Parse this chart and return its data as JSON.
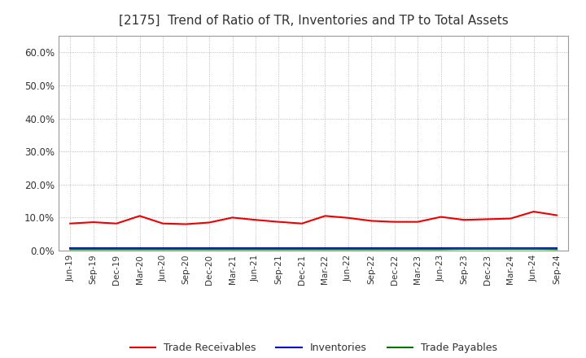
{
  "title": "[2175]  Trend of Ratio of TR, Inventories and TP to Total Assets",
  "x_labels": [
    "Jun-19",
    "Sep-19",
    "Dec-19",
    "Mar-20",
    "Jun-20",
    "Sep-20",
    "Dec-20",
    "Mar-21",
    "Jun-21",
    "Sep-21",
    "Dec-21",
    "Mar-22",
    "Jun-22",
    "Sep-22",
    "Dec-22",
    "Mar-23",
    "Jun-23",
    "Sep-23",
    "Dec-23",
    "Mar-24",
    "Jun-24",
    "Sep-24"
  ],
  "trade_receivables": [
    0.082,
    0.086,
    0.082,
    0.105,
    0.082,
    0.08,
    0.085,
    0.1,
    0.093,
    0.087,
    0.082,
    0.105,
    0.099,
    0.09,
    0.087,
    0.087,
    0.102,
    0.093,
    0.095,
    0.097,
    0.118,
    0.107
  ],
  "inventories": [
    0.007,
    0.007,
    0.007,
    0.007,
    0.007,
    0.007,
    0.007,
    0.007,
    0.007,
    0.007,
    0.007,
    0.007,
    0.007,
    0.007,
    0.007,
    0.007,
    0.007,
    0.007,
    0.007,
    0.007,
    0.007,
    0.007
  ],
  "trade_payables": [
    0.004,
    0.004,
    0.004,
    0.004,
    0.004,
    0.004,
    0.004,
    0.004,
    0.004,
    0.004,
    0.004,
    0.004,
    0.004,
    0.004,
    0.004,
    0.004,
    0.004,
    0.005,
    0.005,
    0.005,
    0.005,
    0.004
  ],
  "tr_color": "#ee0000",
  "inv_color": "#0000cc",
  "tp_color": "#007700",
  "ylim": [
    0.0,
    0.65
  ],
  "yticks": [
    0.0,
    0.1,
    0.2,
    0.3,
    0.4,
    0.5,
    0.6
  ],
  "background_color": "#ffffff",
  "plot_bg_color": "#ffffff",
  "grid_color": "#aaaaaa",
  "title_fontsize": 11,
  "title_color": "#333333",
  "legend_labels": [
    "Trade Receivables",
    "Inventories",
    "Trade Payables"
  ]
}
